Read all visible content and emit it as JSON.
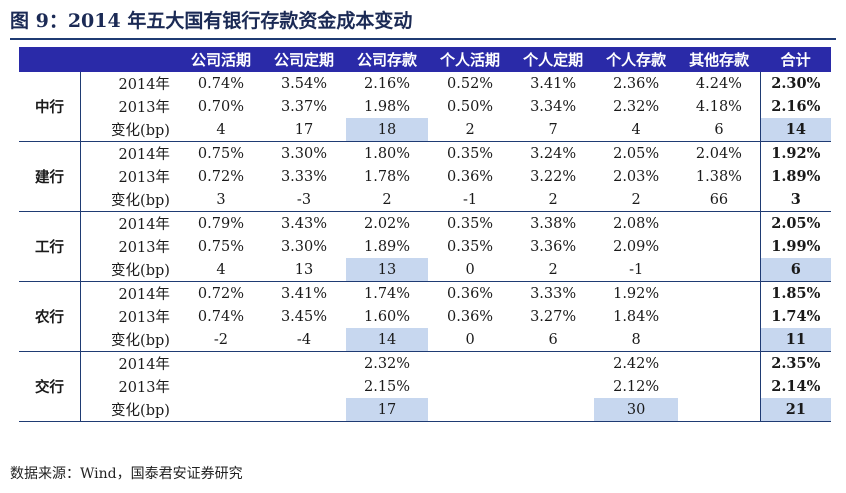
{
  "title": "图 9：2014 年五大国有银行存款资金成本变动",
  "columns": [
    "公司活期",
    "公司定期",
    "公司存款",
    "个人活期",
    "个人定期",
    "个人存款",
    "其他存款",
    "合计"
  ],
  "row_labels": {
    "y2014": "2014年",
    "y2013": "2013年",
    "chg": "变化(bp)"
  },
  "banks": [
    {
      "name": "中行",
      "y2014": [
        "0.74%",
        "3.54%",
        "2.16%",
        "0.52%",
        "3.41%",
        "2.36%",
        "4.24%",
        "2.30%"
      ],
      "y2013": [
        "0.70%",
        "3.37%",
        "1.98%",
        "0.50%",
        "3.34%",
        "2.32%",
        "4.18%",
        "2.16%"
      ],
      "chg": [
        "4",
        "17",
        "18",
        "2",
        "7",
        "4",
        "6",
        "14"
      ]
    },
    {
      "name": "建行",
      "y2014": [
        "0.75%",
        "3.30%",
        "1.80%",
        "0.35%",
        "3.24%",
        "2.05%",
        "2.04%",
        "1.92%"
      ],
      "y2013": [
        "0.72%",
        "3.33%",
        "1.78%",
        "0.36%",
        "3.22%",
        "2.03%",
        "1.38%",
        "1.89%"
      ],
      "chg": [
        "3",
        "-3",
        "2",
        "-1",
        "2",
        "2",
        "66",
        "3"
      ]
    },
    {
      "name": "工行",
      "y2014": [
        "0.79%",
        "3.43%",
        "2.02%",
        "0.35%",
        "3.38%",
        "2.08%",
        "",
        "2.05%"
      ],
      "y2013": [
        "0.75%",
        "3.30%",
        "1.89%",
        "0.35%",
        "3.36%",
        "2.09%",
        "",
        "1.99%"
      ],
      "chg": [
        "4",
        "13",
        "13",
        "0",
        "2",
        "-1",
        "",
        "6"
      ]
    },
    {
      "name": "农行",
      "y2014": [
        "0.72%",
        "3.41%",
        "1.74%",
        "0.36%",
        "3.33%",
        "1.92%",
        "",
        "1.85%"
      ],
      "y2013": [
        "0.74%",
        "3.45%",
        "1.60%",
        "0.36%",
        "3.27%",
        "1.84%",
        "",
        "1.74%"
      ],
      "chg": [
        "-2",
        "-4",
        "14",
        "0",
        "6",
        "8",
        "",
        "11"
      ]
    },
    {
      "name": "交行",
      "y2014": [
        "",
        "",
        "2.32%",
        "",
        "",
        "2.42%",
        "",
        "2.35%"
      ],
      "y2013": [
        "",
        "",
        "2.15%",
        "",
        "",
        "2.12%",
        "",
        "2.14%"
      ],
      "chg": [
        "",
        "",
        "17",
        "",
        "",
        "30",
        "",
        "21"
      ]
    }
  ],
  "source": "数据来源：Wind，国泰君安证券研究",
  "colors": {
    "header_bg": "#2a2aa8",
    "highlight": "#c7d7ef",
    "rule": "#1f3b73",
    "title": "#1b2a55"
  }
}
